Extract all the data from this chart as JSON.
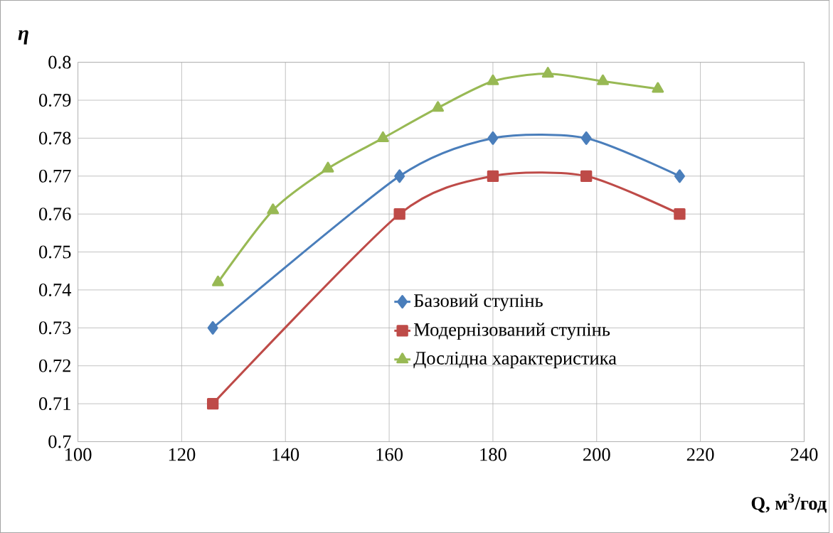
{
  "chart_data": {
    "type": "line",
    "xlabel": "Q, м$^{3}$/год",
    "ylabel": "η",
    "xlim": [
      100,
      240
    ],
    "ylim": [
      0.7,
      0.8
    ],
    "xticks": [
      100,
      120,
      140,
      160,
      180,
      200,
      220,
      240
    ],
    "yticks": [
      0.7,
      0.71,
      0.72,
      0.73,
      0.74,
      0.75,
      0.76,
      0.77,
      0.78,
      0.79,
      0.8
    ],
    "grid": true,
    "legend": "bottom right",
    "series": [
      {
        "name": "Базовий ступінь",
        "color": "#4a7ebb",
        "marker": "diamond",
        "x": [
          126,
          162,
          180,
          198,
          216
        ],
        "values": [
          0.73,
          0.77,
          0.78,
          0.78,
          0.77
        ]
      },
      {
        "name": "Модернізований ступінь",
        "color": "#be4b48",
        "marker": "square",
        "x": [
          126,
          162,
          180,
          198,
          216
        ],
        "values": [
          0.71,
          0.76,
          0.77,
          0.77,
          0.76
        ]
      },
      {
        "name": "Дослідна характеристика",
        "color": "#98b954",
        "marker": "triangle",
        "x": [
          127,
          137.6,
          148.2,
          158.8,
          169.4,
          180,
          190.6,
          201.2,
          211.8
        ],
        "values": [
          0.742,
          0.761,
          0.772,
          0.78,
          0.788,
          0.795,
          0.797,
          0.795,
          0.793
        ]
      }
    ]
  }
}
